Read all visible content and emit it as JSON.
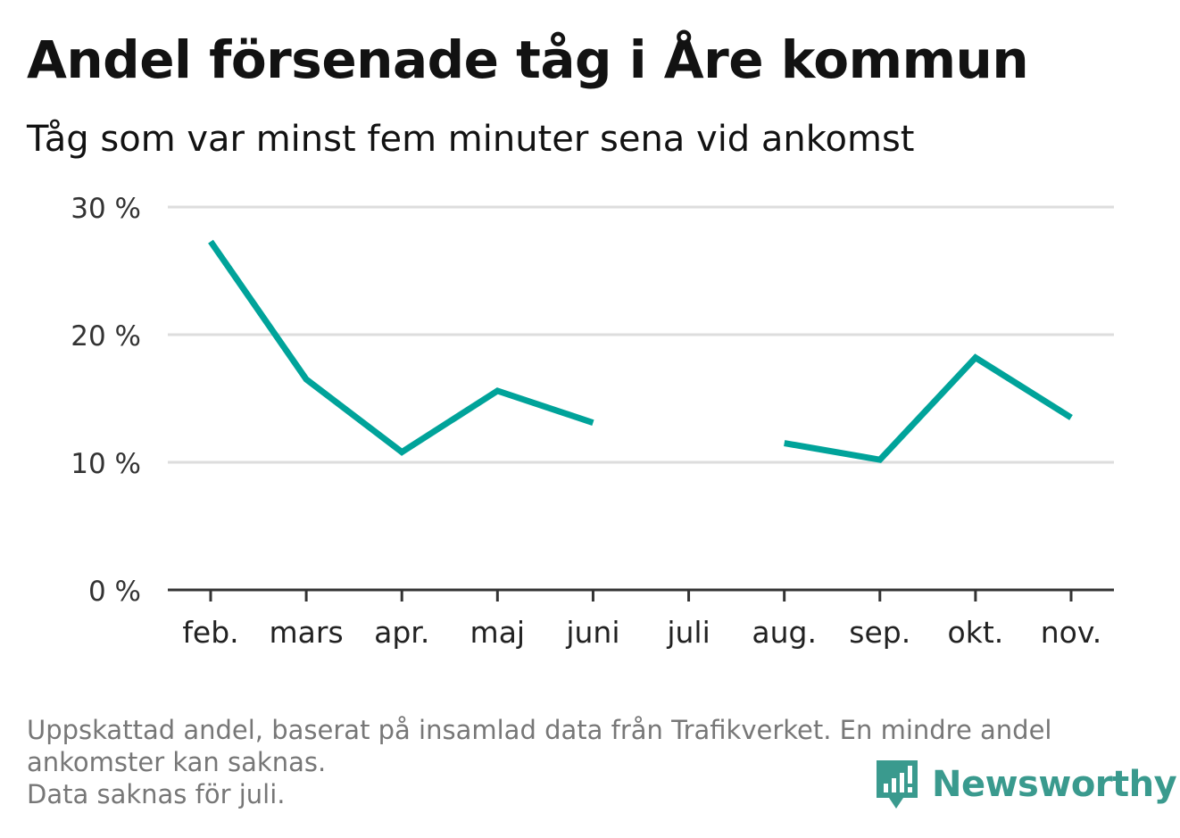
{
  "title": "Andel försenade tåg i Åre kommun",
  "subtitle": "Tåg som var minst fem minuter sena vid ankomst",
  "footnote": {
    "line1": "Uppskattad andel, baserat på insamlad data från Trafikverket. En mindre andel",
    "line2": "ankomster kan saknas.",
    "line3": "Data saknas för juli."
  },
  "brand": {
    "name": "Newsworthy",
    "color": "#3a9a8e"
  },
  "chart_data": {
    "type": "line",
    "title": "Andel försenade tåg i Åre kommun",
    "subtitle": "Tåg som var minst fem minuter sena vid ankomst",
    "categories": [
      "feb.",
      "mars",
      "apr.",
      "maj",
      "juni",
      "juli",
      "aug.",
      "sep.",
      "okt.",
      "nov."
    ],
    "series": [
      {
        "values": [
          27.3,
          16.5,
          10.8,
          15.6,
          13.1,
          null,
          11.5,
          10.2,
          18.2,
          13.5
        ]
      }
    ],
    "y_ticks": [
      0,
      10,
      20,
      30
    ],
    "y_tick_labels": [
      "0 %",
      "10 %",
      "20 %",
      "30 %"
    ],
    "ylim": [
      0,
      30
    ],
    "grid": true,
    "line_color": "#00a39a",
    "grid_color": "#dddddd",
    "axis_color": "#333333"
  }
}
